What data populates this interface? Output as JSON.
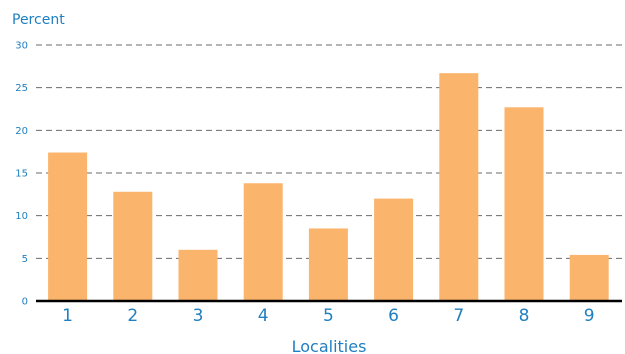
{
  "chart_data": {
    "type": "bar",
    "categories": [
      "1",
      "2",
      "3",
      "4",
      "5",
      "6",
      "7",
      "8",
      "9"
    ],
    "values": [
      17.4,
      12.8,
      6.0,
      13.8,
      8.5,
      12.0,
      26.7,
      22.7,
      5.4
    ],
    "title": "",
    "xlabel": "Localities",
    "ylabel": "Percent",
    "ylim": [
      0,
      30
    ],
    "yticks": [
      0,
      5,
      10,
      15,
      20,
      25,
      30
    ],
    "grid": true,
    "legend": "none"
  },
  "colors": {
    "bar": "#fbb46b",
    "text": "#1f7fc0",
    "grid": "#6b6b6b",
    "axis": "#000000"
  }
}
